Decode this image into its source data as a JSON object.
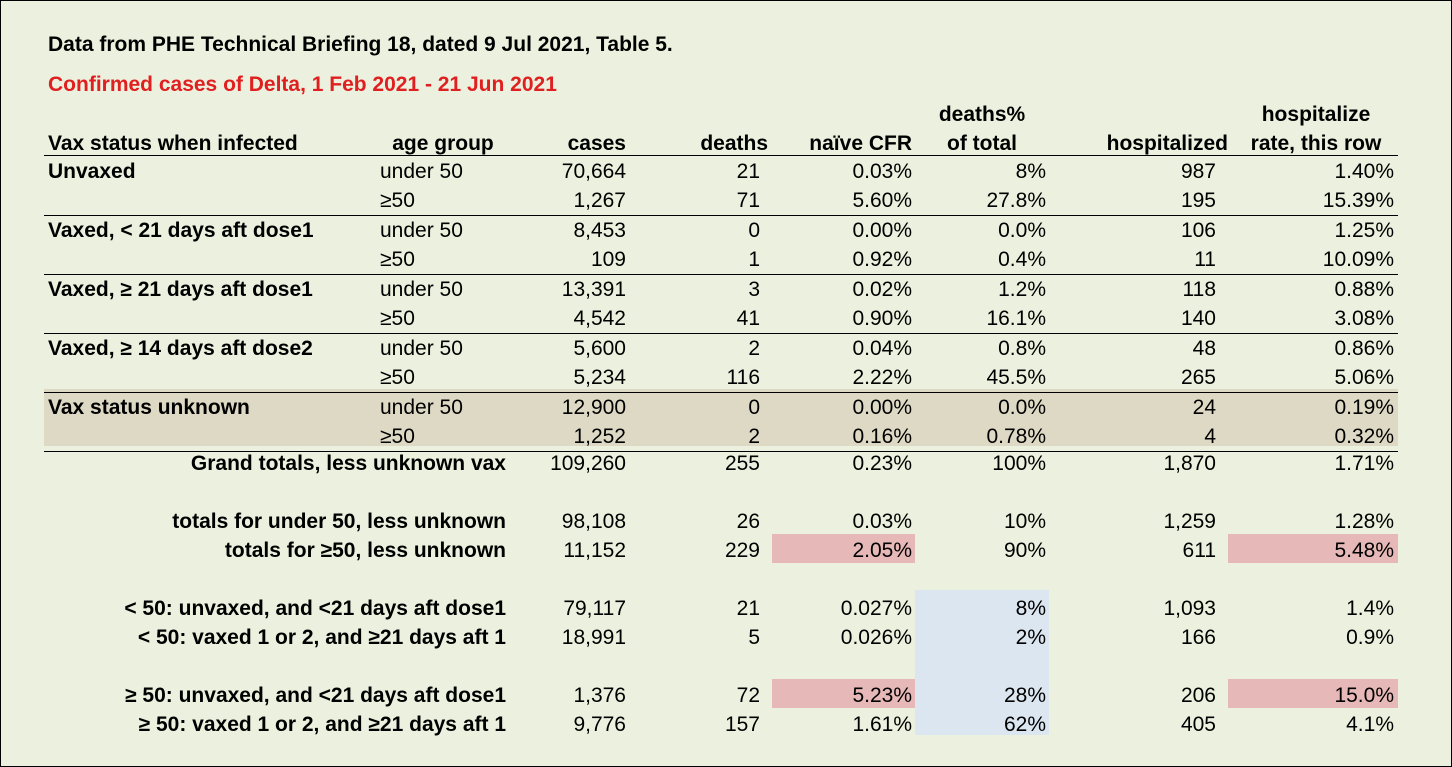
{
  "title": "Data from PHE Technical Briefing 18, dated 9 Jul 2021, Table 5.",
  "subtitle": "Confirmed cases of Delta, 1 Feb 2021 - 21 Jun 2021",
  "colors": {
    "subtitle": "#e02020",
    "background": "#ebf1de",
    "unknown_band": "#ddd9c4",
    "highlight_pink": "#e6b8b7",
    "highlight_blue": "#dce6f1"
  },
  "chart_data": {
    "type": "table",
    "columns": {
      "vax_status": "Vax status when infected",
      "age_group": "age group",
      "cases": "cases",
      "deaths": "deaths",
      "cfr": "naïve CFR",
      "deaths_pct_line1": "deaths%",
      "deaths_pct_line2": "of total",
      "hospitalized": "hospitalized",
      "hosp_rate_line1": "hospitalize",
      "hosp_rate_line2": "rate, this row"
    },
    "groups": [
      {
        "status": "Unvaxed",
        "rows": [
          {
            "age": "under 50",
            "cases": "70,664",
            "deaths": "21",
            "cfr": "0.03%",
            "deaths_pct": "8%",
            "hospitalized": "987",
            "hosp_rate": "1.40%"
          },
          {
            "age": "≥50",
            "cases": "1,267",
            "deaths": "71",
            "cfr": "5.60%",
            "deaths_pct": "27.8%",
            "hospitalized": "195",
            "hosp_rate": "15.39%"
          }
        ]
      },
      {
        "status": "Vaxed, < 21 days aft dose1",
        "rows": [
          {
            "age": "under 50",
            "cases": "8,453",
            "deaths": "0",
            "cfr": "0.00%",
            "deaths_pct": "0.0%",
            "hospitalized": "106",
            "hosp_rate": "1.25%"
          },
          {
            "age": "≥50",
            "cases": "109",
            "deaths": "1",
            "cfr": "0.92%",
            "deaths_pct": "0.4%",
            "hospitalized": "11",
            "hosp_rate": "10.09%"
          }
        ]
      },
      {
        "status": "Vaxed, ≥ 21 days aft dose1",
        "rows": [
          {
            "age": "under 50",
            "cases": "13,391",
            "deaths": "3",
            "cfr": "0.02%",
            "deaths_pct": "1.2%",
            "hospitalized": "118",
            "hosp_rate": "0.88%"
          },
          {
            "age": "≥50",
            "cases": "4,542",
            "deaths": "41",
            "cfr": "0.90%",
            "deaths_pct": "16.1%",
            "hospitalized": "140",
            "hosp_rate": "3.08%"
          }
        ]
      },
      {
        "status": "Vaxed, ≥ 14 days aft dose2",
        "rows": [
          {
            "age": "under 50",
            "cases": "5,600",
            "deaths": "2",
            "cfr": "0.04%",
            "deaths_pct": "0.8%",
            "hospitalized": "48",
            "hosp_rate": "0.86%"
          },
          {
            "age": "≥50",
            "cases": "5,234",
            "deaths": "116",
            "cfr": "2.22%",
            "deaths_pct": "45.5%",
            "hospitalized": "265",
            "hosp_rate": "5.06%"
          }
        ]
      },
      {
        "status": "Vax status unknown",
        "rows": [
          {
            "age": "under 50",
            "cases": "12,900",
            "deaths": "0",
            "cfr": "0.00%",
            "deaths_pct": "0.0%",
            "hospitalized": "24",
            "hosp_rate": "0.19%"
          },
          {
            "age": "≥50",
            "cases": "1,252",
            "deaths": "2",
            "cfr": "0.16%",
            "deaths_pct": "0.78%",
            "hospitalized": "4",
            "hosp_rate": "0.32%"
          }
        ]
      }
    ],
    "summary": [
      {
        "label": "Grand totals, less unknown vax",
        "cases": "109,260",
        "deaths": "255",
        "cfr": "0.23%",
        "deaths_pct": "100%",
        "hospitalized": "1,870",
        "hosp_rate": "1.71%"
      },
      {
        "label": "totals for under 50, less unknown",
        "cases": "98,108",
        "deaths": "26",
        "cfr": "0.03%",
        "deaths_pct": "10%",
        "hospitalized": "1,259",
        "hosp_rate": "1.28%"
      },
      {
        "label": "totals for ≥50, less unknown",
        "cases": "11,152",
        "deaths": "229",
        "cfr": "2.05%",
        "deaths_pct": "90%",
        "hospitalized": "611",
        "hosp_rate": "5.48%"
      },
      {
        "label": "< 50: unvaxed, and <21 days aft dose1",
        "cases": "79,117",
        "deaths": "21",
        "cfr": "0.027%",
        "deaths_pct": "8%",
        "hospitalized": "1,093",
        "hosp_rate": "1.4%"
      },
      {
        "label": "< 50: vaxed 1 or 2, and ≥21 days aft 1",
        "cases": "18,991",
        "deaths": "5",
        "cfr": "0.026%",
        "deaths_pct": "2%",
        "hospitalized": "166",
        "hosp_rate": "0.9%"
      },
      {
        "label": "≥ 50: unvaxed, and <21 days aft dose1",
        "cases": "1,376",
        "deaths": "72",
        "cfr": "5.23%",
        "deaths_pct": "28%",
        "hospitalized": "206",
        "hosp_rate": "15.0%"
      },
      {
        "label": "≥ 50: vaxed 1 or 2, and ≥21 days aft 1",
        "cases": "9,776",
        "deaths": "157",
        "cfr": "1.61%",
        "deaths_pct": "62%",
        "hospitalized": "405",
        "hosp_rate": "4.1%"
      }
    ],
    "highlights": {
      "pink_cfr": [
        2,
        5
      ],
      "pink_hosp": [
        2,
        5
      ],
      "blue_deaths_pct": [
        3,
        4,
        5,
        6
      ]
    }
  }
}
